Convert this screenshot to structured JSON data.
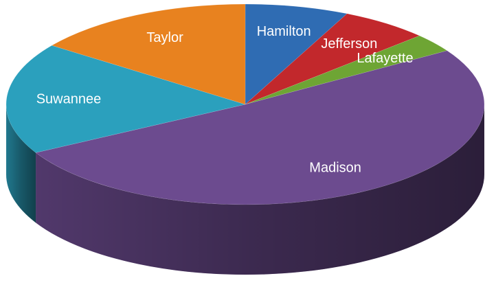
{
  "chart_data": {
    "type": "pie",
    "categories": [
      "Hamilton",
      "Jefferson",
      "Lafayette",
      "Madison",
      "Suwannee",
      "Taylor"
    ],
    "values": [
      7,
      6,
      3,
      51,
      18,
      15
    ],
    "colors": [
      "#2f6cb3",
      "#c2282c",
      "#6ea534",
      "#6c4b8f",
      "#2ba0bd",
      "#e8821f"
    ]
  }
}
